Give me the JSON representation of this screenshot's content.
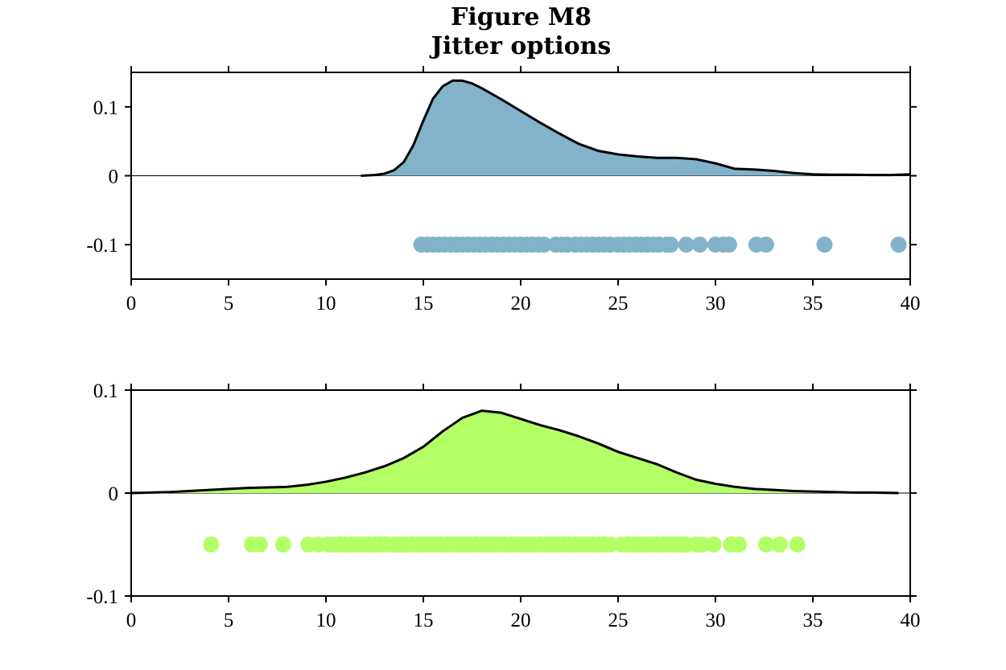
{
  "chart_data": [
    {
      "type": "area",
      "title": "Figure M8",
      "subtitle": "Jitter options",
      "xlabel": "",
      "ylabel": "",
      "xlim": [
        0,
        40
      ],
      "ylim": [
        -0.15,
        0.15
      ],
      "xticks": [
        "0",
        "5",
        "10",
        "15",
        "20",
        "25",
        "30",
        "35",
        "40"
      ],
      "yticks": [
        {
          "value": 0.1,
          "label": "0.1"
        },
        {
          "value": 0,
          "label": "0"
        },
        {
          "value": -0.1,
          "label": "-0.1"
        }
      ],
      "grid": false,
      "fill_color": "#82b3cb",
      "line_color": "#000000",
      "density": {
        "x": [
          11.8,
          12.5,
          13.0,
          13.5,
          14.0,
          14.5,
          15.0,
          15.5,
          16.0,
          16.5,
          17.0,
          17.5,
          18.0,
          19.0,
          20.0,
          21.0,
          22.0,
          23.0,
          24.0,
          25.0,
          26.0,
          27.0,
          28.0,
          29.0,
          30.0,
          31.0,
          32.0,
          33.0,
          34.0,
          35.0,
          36.0,
          37.0,
          38.0,
          39.0,
          40.0
        ],
        "y": [
          0.0,
          0.001,
          0.003,
          0.008,
          0.02,
          0.045,
          0.08,
          0.112,
          0.13,
          0.138,
          0.138,
          0.134,
          0.127,
          0.111,
          0.094,
          0.077,
          0.061,
          0.046,
          0.036,
          0.031,
          0.028,
          0.026,
          0.026,
          0.024,
          0.018,
          0.01,
          0.009,
          0.007,
          0.004,
          0.002,
          0.0015,
          0.0015,
          0.001,
          0.001,
          0.002
        ]
      },
      "points": {
        "y": -0.1,
        "color": "#82b3cb",
        "x": [
          14.9,
          15.2,
          15.5,
          15.8,
          16.1,
          16.4,
          16.7,
          17.0,
          17.3,
          17.6,
          17.9,
          18.2,
          18.5,
          18.8,
          19.1,
          19.4,
          19.7,
          20.0,
          20.3,
          20.6,
          20.9,
          21.2,
          21.8,
          22.1,
          22.4,
          22.8,
          23.1,
          23.4,
          23.7,
          24.0,
          24.3,
          24.6,
          25.0,
          25.3,
          25.6,
          25.9,
          26.2,
          26.5,
          26.8,
          27.1,
          27.5,
          27.7,
          28.5,
          29.2,
          30.0,
          30.4,
          30.7,
          32.1,
          32.6,
          35.6,
          39.4
        ]
      }
    },
    {
      "type": "area",
      "title": "",
      "xlabel": "",
      "ylabel": "",
      "xlim": [
        0,
        40
      ],
      "ylim": [
        -0.1,
        0.1
      ],
      "xticks": [
        "0",
        "5",
        "10",
        "15",
        "20",
        "25",
        "30",
        "35",
        "40"
      ],
      "yticks": [
        {
          "value": 0.1,
          "label": "0.1"
        },
        {
          "value": 0,
          "label": "0"
        },
        {
          "value": -0.1,
          "label": "-0.1"
        }
      ],
      "grid": false,
      "fill_color": "#b3ff66",
      "line_color": "#000000",
      "density": {
        "x": [
          0,
          2,
          4,
          6,
          8,
          9,
          10,
          11,
          12,
          13,
          14,
          15,
          16,
          17,
          18,
          19,
          20,
          21,
          22,
          23,
          24,
          25,
          26,
          27,
          28,
          29,
          30,
          31,
          32,
          33,
          34,
          35,
          36,
          37,
          38,
          39.4
        ],
        "y": [
          0.0,
          0.001,
          0.003,
          0.005,
          0.006,
          0.008,
          0.011,
          0.015,
          0.02,
          0.026,
          0.034,
          0.045,
          0.06,
          0.073,
          0.08,
          0.078,
          0.072,
          0.066,
          0.061,
          0.055,
          0.048,
          0.04,
          0.034,
          0.028,
          0.02,
          0.013,
          0.009,
          0.006,
          0.004,
          0.003,
          0.002,
          0.0015,
          0.001,
          0.0005,
          0.0005,
          0.0
        ]
      },
      "points": {
        "y": -0.05,
        "color": "#b3ff66",
        "x": [
          4.1,
          6.2,
          6.6,
          7.8,
          9.1,
          9.6,
          10.1,
          10.4,
          10.7,
          11.0,
          11.3,
          11.6,
          11.9,
          12.2,
          12.5,
          12.8,
          13.1,
          13.5,
          13.8,
          14.1,
          14.4,
          14.7,
          15.0,
          15.3,
          15.6,
          15.9,
          16.2,
          16.5,
          16.8,
          17.1,
          17.4,
          17.7,
          18.0,
          18.3,
          18.6,
          18.9,
          19.2,
          19.5,
          19.8,
          20.1,
          20.4,
          20.7,
          21.0,
          21.3,
          21.6,
          21.9,
          22.2,
          22.5,
          22.8,
          23.1,
          23.4,
          23.7,
          24.0,
          24.3,
          24.6,
          25.2,
          25.5,
          25.8,
          26.1,
          26.4,
          26.7,
          27.0,
          27.3,
          27.6,
          27.9,
          28.2,
          28.5,
          29.0,
          29.3,
          29.9,
          30.8,
          31.2,
          32.6,
          33.3,
          34.2
        ]
      }
    }
  ]
}
